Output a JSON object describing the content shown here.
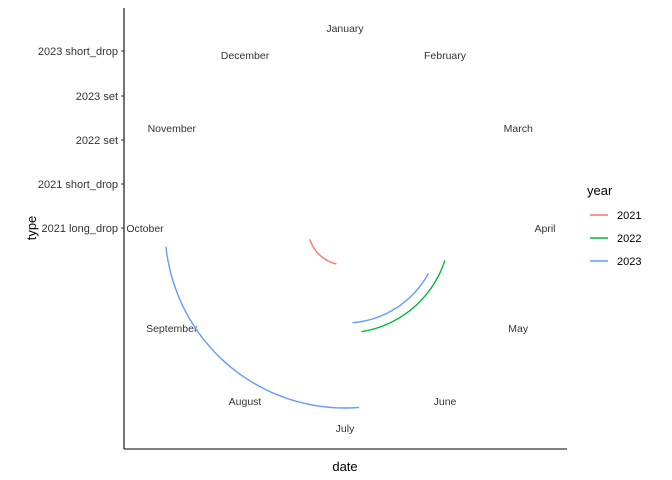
{
  "chart_data": {
    "type": "line",
    "coord": "polar",
    "xlabel": "date",
    "ylabel": "type",
    "y_categories": [
      "2021 long_drop",
      "2021 short_drop",
      "2022 set",
      "2023 set",
      "2023 short_drop"
    ],
    "month_labels": [
      "January",
      "February",
      "March",
      "April",
      "May",
      "June",
      "July",
      "August",
      "September",
      "October",
      "November",
      "December"
    ],
    "legend": {
      "title": "year",
      "placement": "right",
      "entries": [
        {
          "name": "2021",
          "color": "#F8766D"
        },
        {
          "name": "2022",
          "color": "#00BA38"
        },
        {
          "name": "2023",
          "color": "#619CFF"
        }
      ]
    },
    "series": [
      {
        "name": "2021",
        "color": "#F8766D",
        "segments": [
          {
            "start_month": 7.45,
            "end_month": 9.4,
            "radius_category": "2021 long_drop"
          }
        ]
      },
      {
        "name": "2022",
        "color": "#00BA38",
        "segments": [
          {
            "start_month": 4.6,
            "end_month": 6.7,
            "radius_category": "2022 set"
          }
        ]
      },
      {
        "name": "2023",
        "color": "#619CFF",
        "segments": [
          {
            "start_month": 4.95,
            "end_month": 6.85,
            "radius_category": "2023 set"
          },
          {
            "start_month": 6.85,
            "end_month": 9.8,
            "radius_category": "2023 short_drop"
          }
        ]
      }
    ],
    "grid": false
  }
}
